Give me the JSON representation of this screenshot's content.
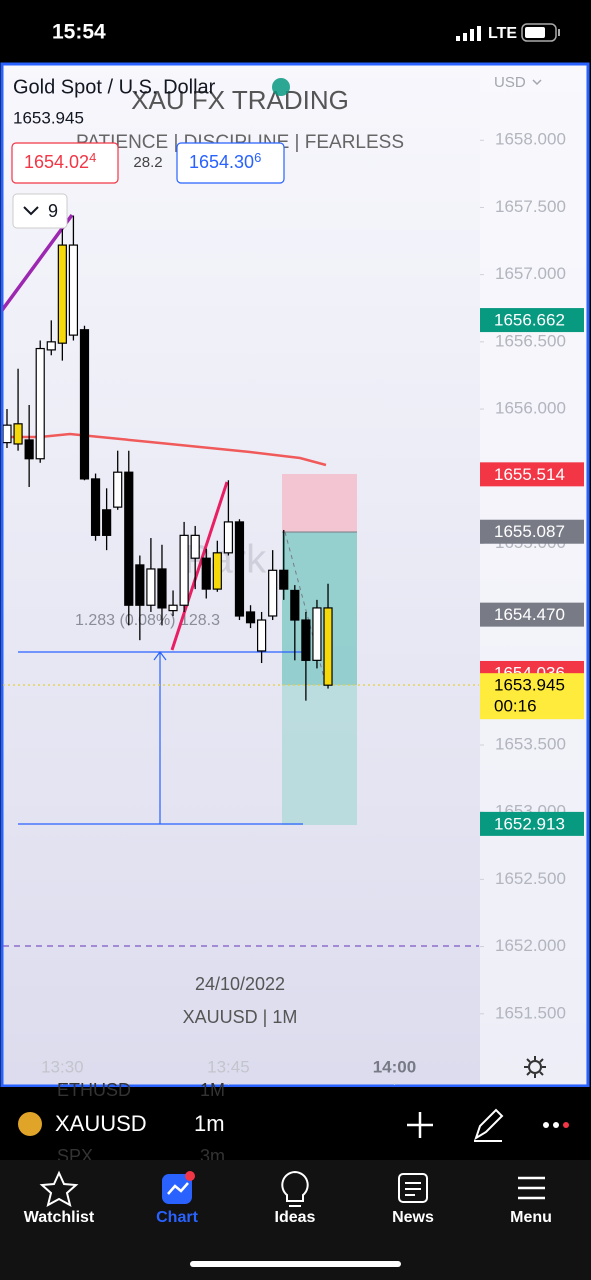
{
  "status_bar": {
    "time": "15:54",
    "network": "LTE"
  },
  "header": {
    "symbol_title": "Gold Spot / U.S. Dollar",
    "last_price": "1653.945",
    "watermark": "XAU FX TRADING",
    "motto": "PATIENCE  |  DISCIPLINE  |  FEARLESS",
    "bid": "1654.02",
    "bid_small": "4",
    "spread": "28.2",
    "ask": "1654.30",
    "ask_small": "6",
    "indicators_count": "9",
    "currency": "USD"
  },
  "chart_data": {
    "type": "candlestick",
    "x": [
      "13:25",
      "13:26",
      "13:27",
      "13:28",
      "13:29",
      "13:30",
      "13:31",
      "13:32",
      "13:33",
      "13:34",
      "13:35",
      "13:36",
      "13:37",
      "13:38",
      "13:39",
      "13:40",
      "13:41",
      "13:42",
      "13:43",
      "13:44",
      "13:45",
      "13:46",
      "13:47",
      "13:48",
      "13:49",
      "13:50",
      "13:51",
      "13:52",
      "13:53",
      "13:54"
    ],
    "open": [
      1655.75,
      1655.74,
      1655.77,
      1655.63,
      1656.44,
      1656.49,
      1656.55,
      1656.59,
      1655.48,
      1655.25,
      1655.27,
      1655.53,
      1654.84,
      1654.54,
      1654.81,
      1654.5,
      1654.54,
      1654.89,
      1654.89,
      1654.66,
      1654.93,
      1655.16,
      1654.49,
      1654.2,
      1654.46,
      1654.8,
      1654.65,
      1654.43,
      1654.13,
      1654.52
    ],
    "high": [
      1656.0,
      1656.3,
      1656.03,
      1656.51,
      1656.66,
      1657.34,
      1657.44,
      1656.62,
      1655.52,
      1655.41,
      1655.69,
      1655.69,
      1654.91,
      1655.04,
      1654.99,
      1654.65,
      1655.16,
      1655.13,
      1654.96,
      1655.02,
      1655.47,
      1655.18,
      1654.54,
      1654.49,
      1654.95,
      1655.1,
      1654.69,
      1654.49,
      1654.58,
      1654.7
    ],
    "low": [
      1655.71,
      1655.69,
      1655.42,
      1655.6,
      1656.4,
      1656.36,
      1656.51,
      1655.47,
      1655.02,
      1654.95,
      1655.25,
      1654.39,
      1654.28,
      1654.49,
      1654.39,
      1654.46,
      1654.49,
      1654.66,
      1654.59,
      1654.64,
      1654.91,
      1654.43,
      1654.37,
      1654.11,
      1654.43,
      1654.58,
      1654.13,
      1653.83,
      1654.07,
      1653.92
    ],
    "close": [
      1655.88,
      1655.89,
      1655.63,
      1656.45,
      1656.5,
      1657.22,
      1657.22,
      1655.48,
      1655.06,
      1655.06,
      1655.53,
      1654.54,
      1654.54,
      1654.81,
      1654.52,
      1654.54,
      1655.06,
      1655.06,
      1654.66,
      1654.93,
      1655.16,
      1654.46,
      1654.41,
      1654.43,
      1654.8,
      1654.66,
      1654.43,
      1654.13,
      1654.52,
      1653.945
    ],
    "body_colors": [
      "#ffffff",
      "#f5d90a",
      "#000000",
      "#ffffff",
      "#ffffff",
      "#f5d90a",
      "#ffffff",
      "#000000",
      "#000000",
      "#000000",
      "#ffffff",
      "#000000",
      "#000000",
      "#ffffff",
      "#000000",
      "#ffffff",
      "#ffffff",
      "#ffffff",
      "#000000",
      "#f5d90a",
      "#ffffff",
      "#000000",
      "#000000",
      "#ffffff",
      "#ffffff",
      "#000000",
      "#000000",
      "#000000",
      "#ffffff",
      "#f5d90a"
    ],
    "xlim": [
      "13:25",
      "14:08"
    ],
    "xticks": [
      "13:30",
      "13:45",
      "14:00"
    ],
    "ylim": [
      1650.97,
      1658.56
    ],
    "yticks": [
      {
        "value": 1658.0,
        "label": "1658.000"
      },
      {
        "value": 1657.5,
        "label": "1657.500"
      },
      {
        "value": 1657.0,
        "label": "1657.000"
      },
      {
        "value": 1656.5,
        "label": "1656.500"
      },
      {
        "value": 1656.0,
        "label": "1656.000"
      },
      {
        "value": 1655.5,
        "label": "1655.500"
      },
      {
        "value": 1655.0,
        "label": "1655.000"
      },
      {
        "value": 1654.5,
        "label": "1654.500"
      },
      {
        "value": 1654.0,
        "label": "1654.000"
      },
      {
        "value": 1653.5,
        "label": "1653.500"
      },
      {
        "value": 1653.0,
        "label": "1653.000"
      },
      {
        "value": 1652.5,
        "label": "1652.500"
      },
      {
        "value": 1652.0,
        "label": "1652.000"
      },
      {
        "value": 1651.5,
        "label": "1651.500"
      }
    ],
    "price_badges": [
      {
        "value": 1656.662,
        "label": "1656.662",
        "color": "#089981",
        "text_color": "#ffffff"
      },
      {
        "value": 1655.514,
        "label": "1655.514",
        "color": "#f23645",
        "text_color": "#ffffff"
      },
      {
        "value": 1655.087,
        "label": "1655.087",
        "color": "#787b86",
        "text_color": "#ffffff"
      },
      {
        "value": 1654.47,
        "label": "1654.470",
        "color": "#787b86",
        "text_color": "#ffffff"
      },
      {
        "value": 1654.036,
        "label": "1654.036",
        "color": "#f23645",
        "text_color": "#ffffff"
      },
      {
        "value": 1653.945,
        "label": "1653.945",
        "color": "#ffeb3b",
        "text_color": "#000000",
        "countdown": "00:16"
      },
      {
        "value": 1652.913,
        "label": "1652.913",
        "color": "#089981",
        "text_color": "#ffffff"
      }
    ],
    "measure_label": "1.283 (0.08%) 128.3",
    "drawing_watermark": "Park",
    "date_label": "24/10/2022",
    "symbol_label": "XAUUSD | 1M"
  },
  "toolbar": {
    "symbol": "XAUUSD",
    "interval": "1m",
    "ghost_symbol_1": "ETHUSD",
    "ghost_interval_1": "1M",
    "ghost_symbol_2": "SPX",
    "ghost_interval_2": "3m"
  },
  "nav": [
    "Watchlist",
    "Chart",
    "Ideas",
    "News",
    "Menu"
  ]
}
